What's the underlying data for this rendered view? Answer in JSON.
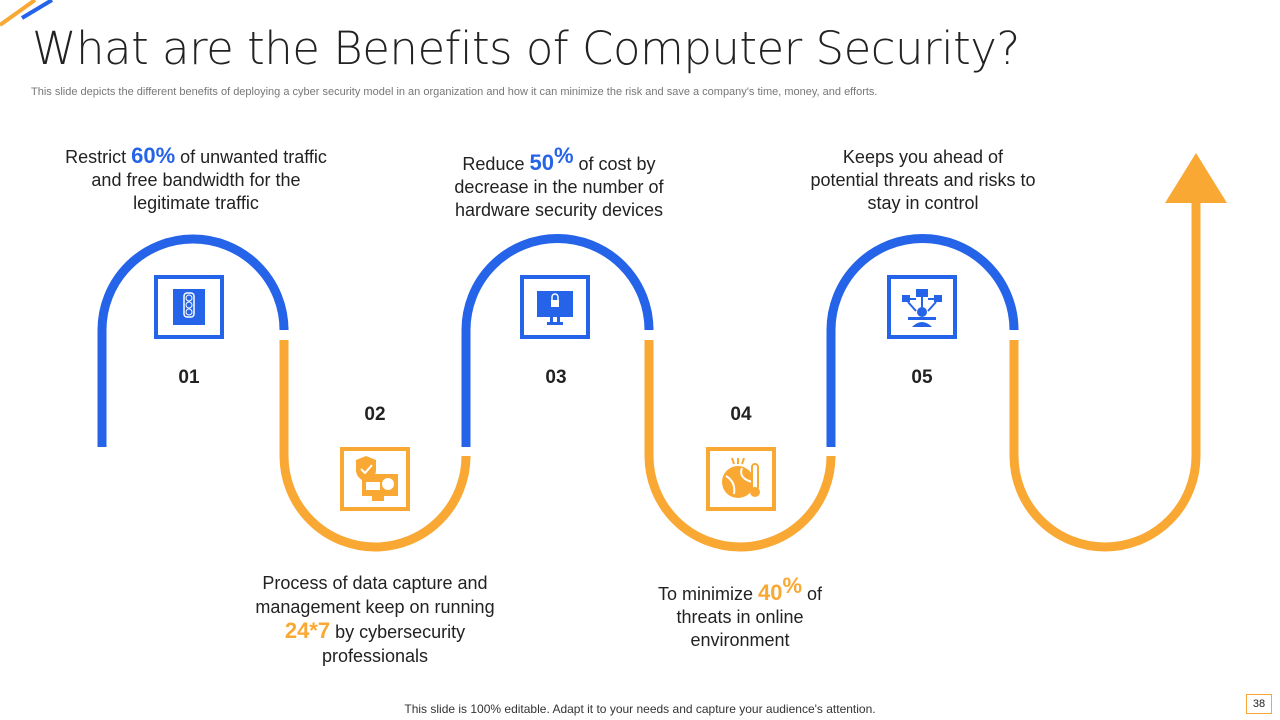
{
  "title": "What are the Benefits of Computer Security?",
  "subtitle": "This slide depicts the different benefits of deploying a cyber security model in an organization and how it can minimize the risk and save a company's time, money, and efforts.",
  "colors": {
    "blue": "#2563e8",
    "orange": "#f9a833"
  },
  "steps": [
    {
      "num": "01",
      "icon": "traffic-light-icon",
      "pre": "Restrict ",
      "hl": "60%",
      "post": " of unwanted traffic and free bandwidth for the legitimate traffic"
    },
    {
      "num": "02",
      "icon": "shield-monitor-icon",
      "pre": "Process of data capture and management keep on running ",
      "hl": "24*7",
      "post": " by cybersecurity professionals"
    },
    {
      "num": "03",
      "icon": "locked-monitor-icon",
      "pre": "Reduce ",
      "hl": "50",
      "sup": "%",
      "post": " of cost by decrease in the number of hardware security devices"
    },
    {
      "num": "04",
      "icon": "globe-thermometer-icon",
      "pre": "To minimize ",
      "hl": "40",
      "sup": "%",
      "post": " of threats in online environment"
    },
    {
      "num": "05",
      "icon": "network-diagram-icon",
      "text": "Keeps you ahead of potential threats and risks to stay in control"
    }
  ],
  "footer": "This slide is 100% editable. Adapt it to your needs and capture your audience's attention.",
  "page_number": "38"
}
